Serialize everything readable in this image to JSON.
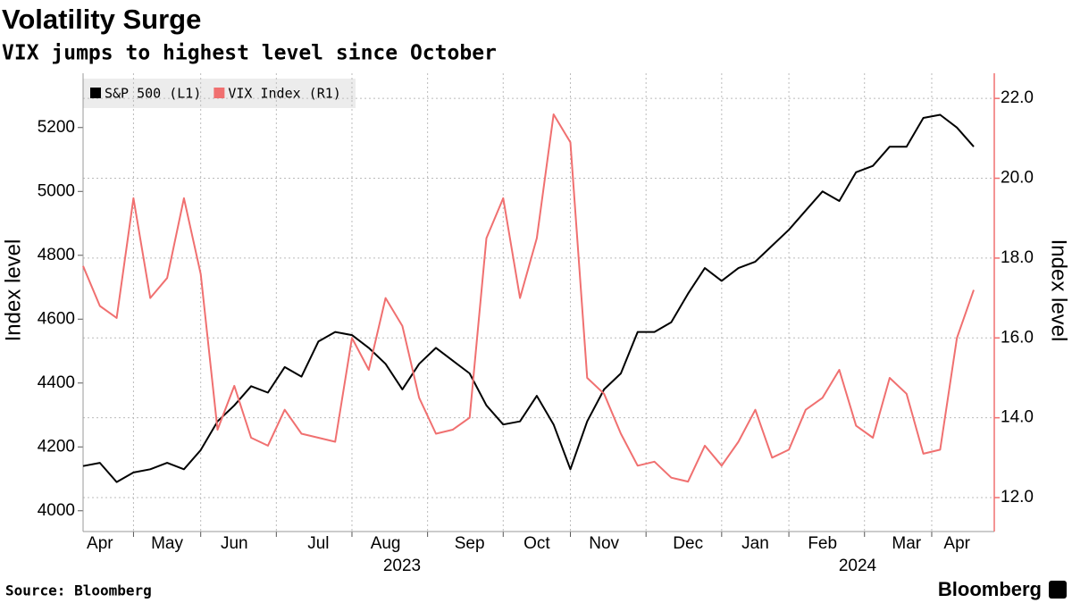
{
  "chart_data": {
    "type": "line",
    "title": "Volatility Surge",
    "subtitle": "VIX jumps to highest level since October",
    "ylabel": "Index level",
    "y2label": "Index level",
    "categories": [
      null,
      "Apr",
      null,
      null,
      null,
      "May",
      null,
      null,
      null,
      "Jun",
      null,
      null,
      null,
      null,
      "Jul",
      null,
      null,
      null,
      "Aug",
      null,
      null,
      null,
      null,
      "Sep",
      null,
      null,
      null,
      "Oct",
      null,
      null,
      null,
      "Nov",
      null,
      null,
      null,
      null,
      "Dec",
      null,
      null,
      null,
      "Jan",
      null,
      null,
      null,
      "Feb",
      null,
      null,
      null,
      null,
      "Mar",
      null,
      null,
      "Apr",
      null
    ],
    "x_group_labels": [
      "2023",
      "2024"
    ],
    "series": [
      {
        "name": "S&P 500 (L1)",
        "color": "#000000",
        "axis": "y",
        "values": [
          4140,
          4150,
          4090,
          4120,
          4130,
          4150,
          4130,
          4190,
          4280,
          4330,
          4390,
          4370,
          4450,
          4420,
          4530,
          4560,
          4550,
          4510,
          4460,
          4380,
          4460,
          4510,
          4470,
          4430,
          4330,
          4270,
          4280,
          4360,
          4270,
          4130,
          4280,
          4380,
          4430,
          4560,
          4560,
          4590,
          4680,
          4760,
          4720,
          4760,
          4780,
          4830,
          4880,
          4940,
          5000,
          4970,
          5060,
          5080,
          5140,
          5140,
          5230,
          5240,
          5200,
          5140
        ]
      },
      {
        "name": "VIX Index (R1)",
        "color": "#f07070",
        "axis": "y2",
        "values": [
          17.8,
          16.8,
          16.5,
          19.5,
          17.0,
          17.5,
          19.5,
          17.6,
          13.7,
          14.8,
          13.5,
          13.3,
          14.2,
          13.6,
          13.5,
          13.4,
          16.0,
          15.2,
          17.0,
          16.3,
          14.5,
          13.6,
          13.7,
          14.0,
          18.5,
          19.5,
          17.0,
          18.5,
          21.6,
          20.9,
          15.0,
          14.6,
          13.6,
          12.8,
          12.9,
          12.5,
          12.4,
          13.3,
          12.8,
          13.4,
          14.2,
          13.0,
          13.2,
          14.2,
          14.5,
          15.2,
          13.8,
          13.5,
          15.0,
          14.6,
          13.1,
          13.2,
          16.0,
          17.2
        ]
      }
    ],
    "ylim": [
      3935,
      5370
    ],
    "yticks": [
      4000,
      4200,
      4400,
      4600,
      4800,
      5000,
      5200
    ],
    "y2lim": [
      11.15,
      22.63
    ],
    "y2ticks": [
      {
        "value": 12,
        "label": "12.0"
      },
      {
        "value": 14,
        "label": "14.0"
      },
      {
        "value": 16,
        "label": "16.0"
      },
      {
        "value": 18,
        "label": "18.0"
      },
      {
        "value": 20,
        "label": "20.0"
      },
      {
        "value": 22,
        "label": "22.0"
      }
    ],
    "grid": true,
    "legend": "top-left"
  },
  "source": "Source: Bloomberg",
  "logo": "Bloomberg"
}
